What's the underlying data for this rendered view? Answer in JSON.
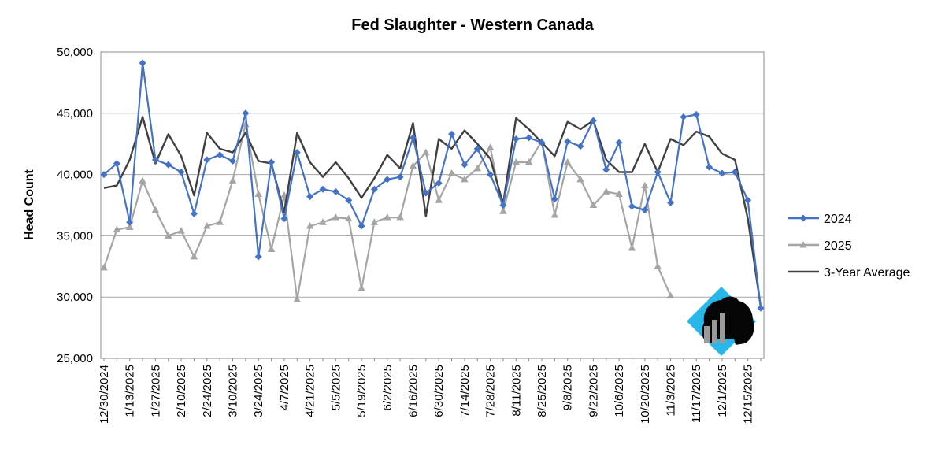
{
  "chart_data": {
    "type": "line",
    "title": "Fed Slaughter - Western Canada",
    "xlabel": "",
    "ylabel": "Head Count",
    "ylim": [
      25000,
      50000
    ],
    "yticks": [
      "25,000",
      "30,000",
      "35,000",
      "40,000",
      "45,000",
      "50,000"
    ],
    "x_tick_labels": [
      "12/30/2024",
      "1/13/2025",
      "1/27/2025",
      "2/10/2025",
      "2/24/2025",
      "3/10/2025",
      "3/24/2025",
      "4/7/2025",
      "4/21/2025",
      "5/5/2025",
      "5/19/2025",
      "6/2/2025",
      "6/16/2025",
      "6/30/2025",
      "7/14/2025",
      "7/28/2025",
      "8/11/2025",
      "8/25/2025",
      "9/8/2025",
      "9/22/2025",
      "10/6/2025",
      "10/20/2025",
      "11/3/2025",
      "11/17/2025",
      "12/1/2025",
      "12/15/2025"
    ],
    "grid": "horizontal",
    "legend": "right",
    "series": [
      {
        "name": "2024",
        "color": "#4472c4",
        "marker": "diamond",
        "values": [
          40000,
          40900,
          36100,
          49100,
          41200,
          40800,
          40200,
          36800,
          41200,
          41600,
          41100,
          45000,
          33300,
          41000,
          36400,
          41800,
          38200,
          38800,
          38600,
          37900,
          35800,
          38800,
          39600,
          39800,
          43000,
          38500,
          39300,
          43300,
          40800,
          42100,
          40000,
          37500,
          42900,
          43000,
          42600,
          38000,
          42700,
          42300,
          44400,
          40400,
          42600,
          37400,
          37100,
          40200,
          37700,
          44700,
          44900,
          40600,
          40100,
          40200,
          37900,
          29100
        ]
      },
      {
        "name": "2025",
        "color": "#a5a5a5",
        "marker": "triangle",
        "values": [
          32400,
          35500,
          35700,
          39500,
          37100,
          35000,
          35400,
          33300,
          35800,
          36100,
          39500,
          44100,
          38400,
          33900,
          38300,
          29800,
          35800,
          36100,
          36500,
          36400,
          30700,
          36100,
          36500,
          36500,
          40700,
          41800,
          37900,
          40100,
          39600,
          40500,
          42200,
          37000,
          41000,
          41000,
          42700,
          36700,
          41000,
          39600,
          37500,
          38600,
          38400,
          34000,
          39100,
          32500,
          30100
        ]
      },
      {
        "name": "3-Year Average",
        "color": "#404040",
        "marker": "none",
        "values": [
          38900,
          39100,
          41200,
          44700,
          40900,
          43300,
          41500,
          38300,
          43400,
          42100,
          41800,
          43400,
          41100,
          40900,
          36900,
          43400,
          41000,
          39800,
          41000,
          39700,
          38100,
          39700,
          41600,
          40500,
          44200,
          36600,
          42900,
          42100,
          43600,
          42500,
          41300,
          37600,
          44600,
          43700,
          42600,
          41500,
          44300,
          43700,
          44400,
          41200,
          40200,
          40200,
          42500,
          40200,
          42900,
          42400,
          43500,
          43100,
          41700,
          41200,
          36400,
          29200
        ]
      }
    ]
  }
}
